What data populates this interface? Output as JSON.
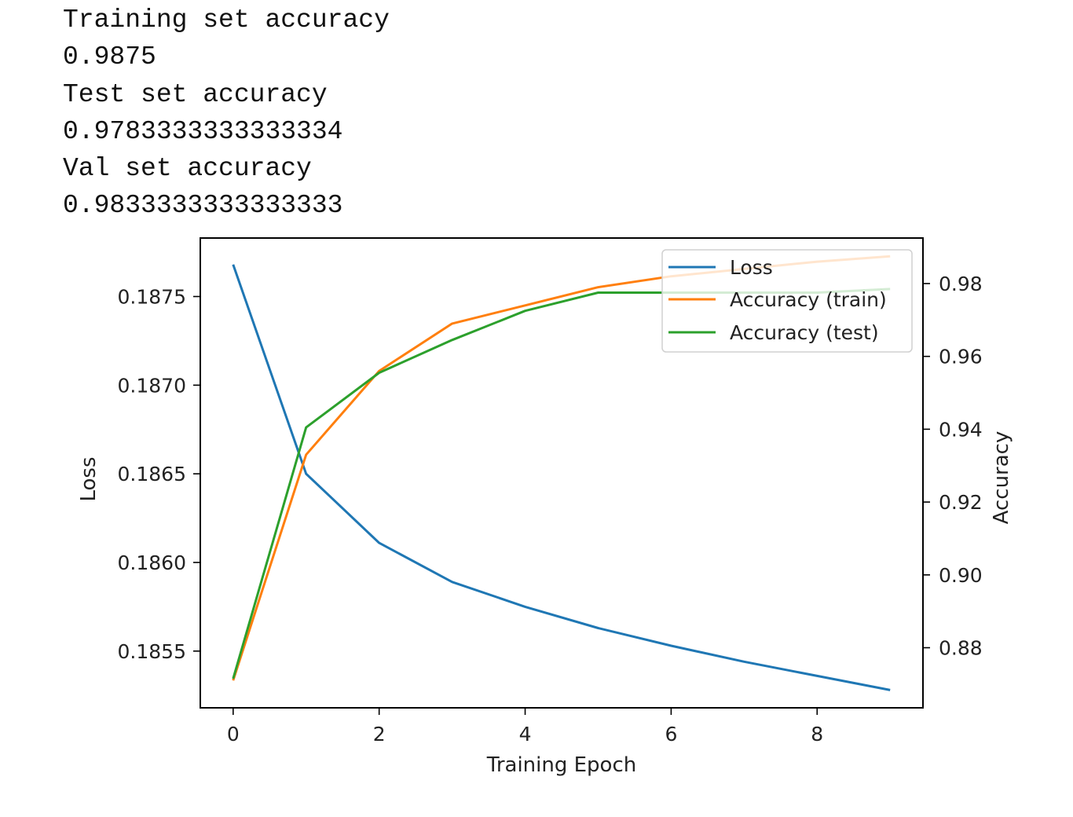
{
  "output_lines": [
    "Training set accuracy",
    "0.9875",
    "Test set accuracy",
    "0.9783333333333334",
    "Val set accuracy",
    "0.9833333333333333"
  ],
  "chart_data": {
    "type": "line",
    "title": "",
    "xlabel": "Training Epoch",
    "ylabel_left": "Loss",
    "ylabel_right": "Accuracy",
    "x": [
      0,
      1,
      2,
      3,
      4,
      5,
      6,
      7,
      8,
      9
    ],
    "xlim": [
      -0.45,
      9.45
    ],
    "xticks": [
      "0",
      "2",
      "4",
      "6",
      "8"
    ],
    "ylim_left": [
      0.18518,
      0.18783
    ],
    "yticks_left": [
      "0.1855",
      "0.1860",
      "0.1865",
      "0.1870",
      "0.1875"
    ],
    "ylim_right": [
      0.8635,
      0.9925
    ],
    "yticks_right": [
      "0.88",
      "0.90",
      "0.92",
      "0.94",
      "0.96",
      "0.98"
    ],
    "grid": false,
    "legend_position": "upper right",
    "series": [
      {
        "name": "Loss",
        "axis": "left",
        "color": "#1f77b4",
        "values": [
          0.18768,
          0.1865,
          0.18611,
          0.18589,
          0.18575,
          0.18563,
          0.18553,
          0.18544,
          0.18536,
          0.18528
        ]
      },
      {
        "name": "Accuracy (train)",
        "axis": "right",
        "color": "#ff7f0e",
        "values": [
          0.871,
          0.933,
          0.956,
          0.969,
          0.974,
          0.979,
          0.982,
          0.984,
          0.986,
          0.9875
        ]
      },
      {
        "name": "Accuracy (test)",
        "axis": "right",
        "color": "#2ca02c",
        "values": [
          0.8715,
          0.9405,
          0.9555,
          0.9645,
          0.9725,
          0.9775,
          0.9775,
          0.9775,
          0.9775,
          0.9785
        ]
      }
    ]
  }
}
